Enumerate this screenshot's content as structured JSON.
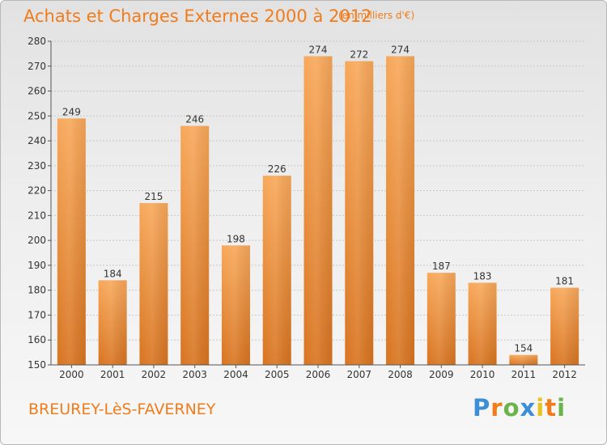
{
  "title": "Achats et Charges Externes 2000 à 2012",
  "subtitle": "(en milliers d'€)",
  "place": "BREUREY-LèS-FAVERNEY",
  "logo": {
    "text": "Proxiti",
    "letter_colors": [
      "#3a8fd6",
      "#f07c1c",
      "#6bb34a",
      "#3a8fd6",
      "#e8c21e",
      "#f07c1c",
      "#6bb34a"
    ]
  },
  "colors": {
    "bar_light": "#f8a85a",
    "bar_dark": "#d87420",
    "grid": "#c8c8c8",
    "axis": "#555555",
    "text": "#333333",
    "accent": "#f07c1c"
  },
  "chart_data": {
    "type": "bar",
    "title": "Achats et Charges Externes 2000 à 2012",
    "subtitle": "(en milliers d'€)",
    "xlabel": "",
    "ylabel": "",
    "categories": [
      "2000",
      "2001",
      "2002",
      "2003",
      "2004",
      "2005",
      "2006",
      "2007",
      "2008",
      "2009",
      "2010",
      "2011",
      "2012"
    ],
    "values": [
      249,
      184,
      215,
      246,
      198,
      226,
      274,
      272,
      274,
      187,
      183,
      154,
      181
    ],
    "data_labels": [
      "249",
      "184",
      "215",
      "246",
      "198",
      "226",
      "274",
      "272",
      "274",
      "187",
      "183",
      "154",
      "181"
    ],
    "ylim": [
      150,
      280
    ],
    "yticks": [
      150,
      160,
      170,
      180,
      190,
      200,
      210,
      220,
      230,
      240,
      250,
      260,
      270,
      280
    ],
    "ytick_labels": [
      "150",
      "160",
      "170",
      "180",
      "190",
      "200",
      "210",
      "220",
      "230",
      "240",
      "250",
      "260",
      "270",
      "280"
    ],
    "grid": true,
    "legend": "none"
  }
}
